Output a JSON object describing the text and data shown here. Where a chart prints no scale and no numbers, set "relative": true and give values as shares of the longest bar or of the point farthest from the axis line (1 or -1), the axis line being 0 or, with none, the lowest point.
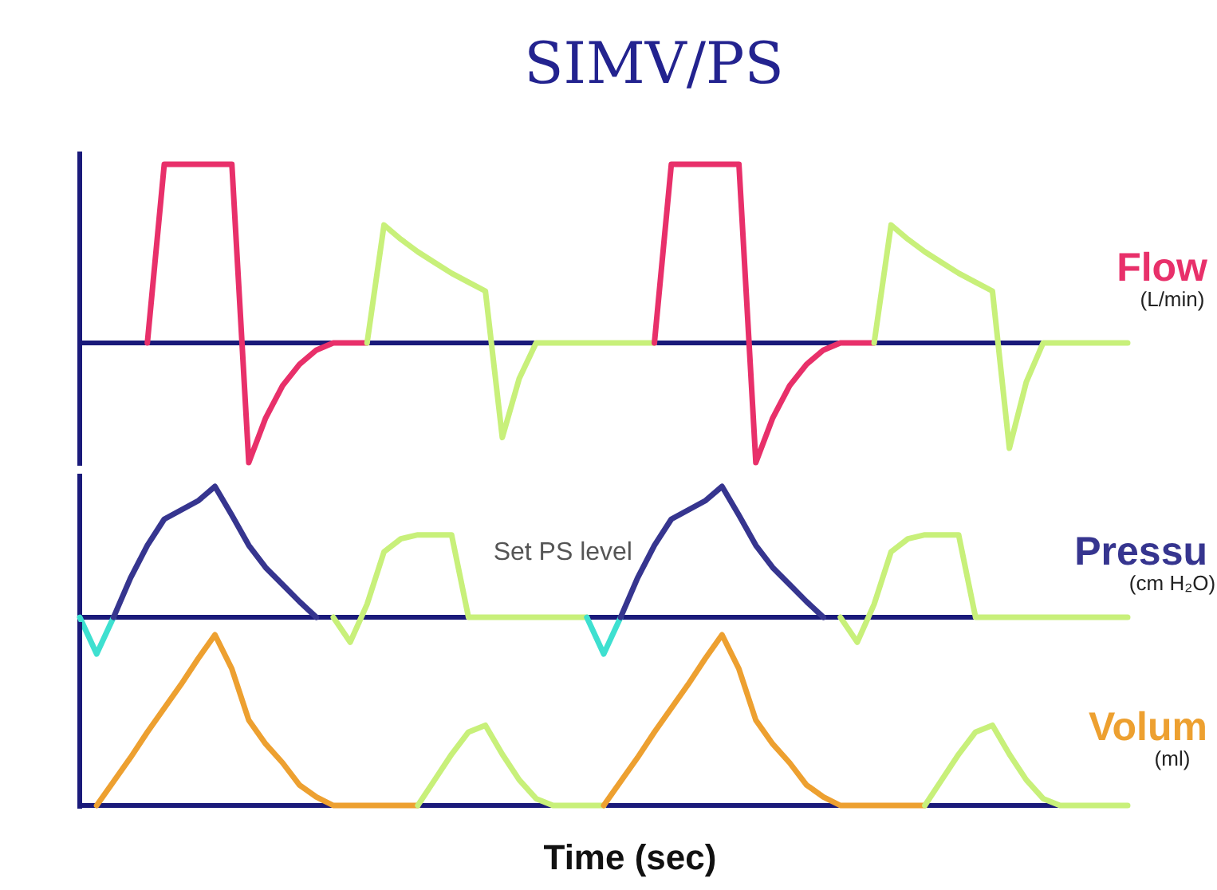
{
  "chart_data": [
    {
      "type": "line",
      "title": "SIMV/PS",
      "ylabel": "Flow",
      "annotations": [
        "(L/min)"
      ],
      "relative": true,
      "ref_lines": [
        {
          "axis": "y",
          "value": 0,
          "color": "#1a1a7a"
        }
      ],
      "categories": [
        null,
        null,
        null,
        null,
        null,
        null,
        null,
        null,
        null,
        null,
        null,
        null,
        null,
        null,
        null,
        null,
        null,
        null,
        null,
        null,
        null,
        null,
        null,
        null,
        null,
        null,
        null,
        null,
        null,
        null,
        null,
        null,
        null,
        null,
        null,
        null,
        null,
        null,
        null,
        null,
        null,
        null,
        null,
        null,
        null,
        null,
        null,
        null,
        null,
        null,
        null,
        null,
        null,
        null,
        null,
        null,
        null,
        null,
        null,
        null,
        null,
        null,
        null
      ],
      "series": [
        {
          "color": "#e8306a",
          "values": [
            null,
            null,
            null,
            null,
            0,
            1,
            1,
            1,
            1,
            1,
            -0.67,
            -0.42,
            -0.24,
            -0.12,
            -0.04,
            0,
            0,
            0,
            null,
            null,
            null,
            null,
            null,
            null,
            null,
            null,
            null,
            null,
            null,
            null,
            null,
            null,
            null,
            null,
            null,
            null,
            null,
            null,
            null,
            null,
            null,
            null,
            null,
            null,
            null,
            null,
            null,
            null,
            null,
            null,
            null,
            null,
            null,
            null,
            null,
            null,
            null,
            null,
            null,
            null,
            null,
            null,
            null
          ]
        },
        {
          "color": "#c8f07a",
          "values": [
            null,
            null,
            null,
            null,
            null,
            null,
            null,
            null,
            null,
            null,
            null,
            null,
            null,
            null,
            null,
            null,
            null,
            0,
            0.66,
            0.58,
            0.51,
            0.45,
            0.39,
            0.34,
            0.29,
            -0.53,
            -0.2,
            0,
            0,
            0,
            0,
            0,
            0,
            0,
            0,
            null,
            null,
            null,
            null,
            null,
            null,
            null,
            null,
            null,
            null,
            null,
            null,
            null,
            null,
            null,
            null,
            null,
            null,
            null,
            null,
            null,
            null,
            null,
            null,
            null,
            null,
            null,
            null
          ]
        },
        {
          "color": "#e8306a",
          "values": [
            null,
            null,
            null,
            null,
            null,
            null,
            null,
            null,
            null,
            null,
            null,
            null,
            null,
            null,
            null,
            null,
            null,
            null,
            null,
            null,
            null,
            null,
            null,
            null,
            null,
            null,
            null,
            null,
            null,
            null,
            null,
            null,
            null,
            null,
            0,
            1,
            1,
            1,
            1,
            1,
            -0.67,
            -0.42,
            -0.24,
            -0.12,
            -0.04,
            0,
            0,
            0,
            null,
            null,
            null,
            null,
            null,
            null,
            null,
            null,
            null,
            null,
            null,
            null,
            null,
            null,
            null
          ]
        },
        {
          "color": "#c8f07a",
          "values": [
            null,
            null,
            null,
            null,
            null,
            null,
            null,
            null,
            null,
            null,
            null,
            null,
            null,
            null,
            null,
            null,
            null,
            null,
            null,
            null,
            null,
            null,
            null,
            null,
            null,
            null,
            null,
            null,
            null,
            null,
            null,
            null,
            null,
            null,
            null,
            null,
            null,
            null,
            null,
            null,
            null,
            null,
            null,
            null,
            null,
            null,
            null,
            0,
            0.66,
            0.58,
            0.51,
            0.45,
            0.39,
            0.34,
            0.29,
            -0.59,
            -0.22,
            0,
            0,
            0,
            0,
            0,
            0
          ]
        }
      ]
    },
    {
      "type": "line",
      "ylabel": "Pressu",
      "annotations": [
        "(cm H₂O)",
        "Set PS level"
      ],
      "relative": true,
      "ref_lines": [
        {
          "axis": "y",
          "value": 0,
          "color": "#1a1a7a"
        }
      ],
      "categories": [
        null,
        null,
        null,
        null,
        null,
        null,
        null,
        null,
        null,
        null,
        null,
        null,
        null,
        null,
        null,
        null,
        null,
        null,
        null,
        null,
        null,
        null,
        null,
        null,
        null,
        null,
        null,
        null,
        null,
        null,
        null,
        null,
        null,
        null,
        null,
        null,
        null,
        null,
        null,
        null,
        null,
        null,
        null,
        null,
        null,
        null,
        null,
        null,
        null,
        null,
        null,
        null,
        null,
        null,
        null,
        null,
        null,
        null,
        null,
        null,
        null,
        null,
        null
      ],
      "series": [
        {
          "color": "#3ee0d0",
          "values": [
            0,
            -0.28,
            0,
            null,
            null,
            null,
            null,
            null,
            null,
            null,
            null,
            null,
            null,
            null,
            null,
            null,
            null,
            null,
            null,
            null,
            null,
            null,
            null,
            null,
            null,
            null,
            null,
            null,
            null,
            null,
            null,
            null,
            null,
            null,
            null,
            null,
            null,
            null,
            null,
            null,
            null,
            null,
            null,
            null,
            null,
            null,
            null,
            null,
            null,
            null,
            null,
            null,
            null,
            null,
            null,
            null,
            null,
            null,
            null,
            null,
            null,
            null,
            null
          ]
        },
        {
          "color": "#36358f",
          "values": [
            null,
            null,
            0,
            0.3,
            0.55,
            0.75,
            0.82,
            0.89,
            1,
            0.78,
            0.55,
            0.38,
            0.25,
            0.12,
            0,
            null,
            null,
            null,
            null,
            null,
            null,
            null,
            null,
            null,
            null,
            null,
            null,
            null,
            null,
            null,
            null,
            null,
            null,
            null,
            null,
            null,
            null,
            null,
            null,
            null,
            null,
            null,
            null,
            null,
            null,
            null,
            null,
            null,
            null,
            null,
            null,
            null,
            null,
            null,
            null,
            null,
            null,
            null,
            null,
            null,
            null,
            null,
            null
          ]
        },
        {
          "color": "#c8f07a",
          "values": [
            null,
            null,
            null,
            null,
            null,
            null,
            null,
            null,
            null,
            null,
            null,
            null,
            null,
            null,
            null,
            0,
            -0.19,
            0.1,
            0.5,
            0.6,
            0.63,
            0.63,
            0.63,
            0,
            0,
            0,
            0,
            0,
            0,
            0,
            0,
            null,
            null,
            null,
            null,
            null,
            null,
            null,
            null,
            null,
            null,
            null,
            null,
            null,
            null,
            null,
            null,
            null,
            null,
            null,
            null,
            null,
            null,
            null,
            null,
            null,
            null,
            null,
            null,
            null,
            null,
            null,
            null
          ]
        },
        {
          "color": "#3ee0d0",
          "values": [
            null,
            null,
            null,
            null,
            null,
            null,
            null,
            null,
            null,
            null,
            null,
            null,
            null,
            null,
            null,
            null,
            null,
            null,
            null,
            null,
            null,
            null,
            null,
            null,
            null,
            null,
            null,
            null,
            null,
            null,
            0,
            -0.28,
            0,
            null,
            null,
            null,
            null,
            null,
            null,
            null,
            null,
            null,
            null,
            null,
            null,
            null,
            null,
            null,
            null,
            null,
            null,
            null,
            null,
            null,
            null,
            null,
            null,
            null,
            null,
            null,
            null,
            null,
            null
          ]
        },
        {
          "color": "#36358f",
          "values": [
            null,
            null,
            null,
            null,
            null,
            null,
            null,
            null,
            null,
            null,
            null,
            null,
            null,
            null,
            null,
            null,
            null,
            null,
            null,
            null,
            null,
            null,
            null,
            null,
            null,
            null,
            null,
            null,
            null,
            null,
            null,
            null,
            0,
            0.3,
            0.55,
            0.75,
            0.82,
            0.89,
            1,
            0.78,
            0.55,
            0.38,
            0.25,
            0.12,
            0,
            null,
            null,
            null,
            null,
            null,
            null,
            null,
            null,
            null,
            null,
            null,
            null,
            null,
            null,
            null,
            null,
            null,
            null
          ]
        },
        {
          "color": "#c8f07a",
          "values": [
            null,
            null,
            null,
            null,
            null,
            null,
            null,
            null,
            null,
            null,
            null,
            null,
            null,
            null,
            null,
            null,
            null,
            null,
            null,
            null,
            null,
            null,
            null,
            null,
            null,
            null,
            null,
            null,
            null,
            null,
            null,
            null,
            null,
            null,
            null,
            null,
            null,
            null,
            null,
            null,
            null,
            null,
            null,
            null,
            null,
            0,
            -0.19,
            0.1,
            0.5,
            0.6,
            0.63,
            0.63,
            0.63,
            0,
            0,
            0,
            0,
            0,
            0,
            0,
            0,
            0,
            0
          ]
        }
      ]
    },
    {
      "type": "line",
      "ylabel": "Volum",
      "xlabel": "Time (sec)",
      "annotations": [
        "(ml)"
      ],
      "relative": true,
      "categories": [
        null,
        null,
        null,
        null,
        null,
        null,
        null,
        null,
        null,
        null,
        null,
        null,
        null,
        null,
        null,
        null,
        null,
        null,
        null,
        null,
        null,
        null,
        null,
        null,
        null,
        null,
        null,
        null,
        null,
        null,
        null,
        null,
        null,
        null,
        null,
        null,
        null,
        null,
        null,
        null,
        null,
        null,
        null,
        null,
        null,
        null,
        null,
        null,
        null,
        null,
        null,
        null,
        null,
        null,
        null,
        null,
        null,
        null,
        null,
        null,
        null,
        null,
        null
      ],
      "series": [
        {
          "color": "#eda030",
          "values": [
            null,
            0,
            0.14,
            0.28,
            0.43,
            0.57,
            0.71,
            0.86,
            1,
            0.8,
            0.5,
            0.36,
            0.25,
            0.12,
            0.05,
            0,
            0,
            0,
            0,
            0,
            0,
            null,
            null,
            null,
            null,
            null,
            null,
            null,
            null,
            null,
            null,
            null,
            null,
            null,
            null,
            null,
            null,
            null,
            null,
            null,
            null,
            null,
            null,
            null,
            null,
            null,
            null,
            null,
            null,
            null,
            null,
            null,
            null,
            null,
            null,
            null,
            null,
            null,
            null,
            null,
            null,
            null,
            null
          ]
        },
        {
          "color": "#c8f07a",
          "values": [
            null,
            null,
            null,
            null,
            null,
            null,
            null,
            null,
            null,
            null,
            null,
            null,
            null,
            null,
            null,
            null,
            null,
            null,
            null,
            null,
            0,
            0.15,
            0.3,
            0.43,
            0.47,
            0.3,
            0.15,
            0.04,
            0,
            0,
            0,
            0,
            null,
            null,
            null,
            null,
            null,
            null,
            null,
            null,
            null,
            null,
            null,
            null,
            null,
            null,
            null,
            null,
            null,
            null,
            null,
            null,
            null,
            null,
            null,
            null,
            null,
            null,
            null,
            null,
            null,
            null,
            null
          ]
        },
        {
          "color": "#eda030",
          "values": [
            null,
            null,
            null,
            null,
            null,
            null,
            null,
            null,
            null,
            null,
            null,
            null,
            null,
            null,
            null,
            null,
            null,
            null,
            null,
            null,
            null,
            null,
            null,
            null,
            null,
            null,
            null,
            null,
            null,
            null,
            null,
            0,
            0.14,
            0.28,
            0.43,
            0.57,
            0.71,
            0.86,
            1,
            0.8,
            0.5,
            0.36,
            0.25,
            0.12,
            0.05,
            0,
            0,
            0,
            0,
            0,
            0,
            null,
            null,
            null,
            null,
            null,
            null,
            null,
            null,
            null,
            null,
            null,
            null
          ]
        },
        {
          "color": "#c8f07a",
          "values": [
            null,
            null,
            null,
            null,
            null,
            null,
            null,
            null,
            null,
            null,
            null,
            null,
            null,
            null,
            null,
            null,
            null,
            null,
            null,
            null,
            null,
            null,
            null,
            null,
            null,
            null,
            null,
            null,
            null,
            null,
            null,
            null,
            null,
            null,
            null,
            null,
            null,
            null,
            null,
            null,
            null,
            null,
            null,
            null,
            null,
            null,
            null,
            null,
            null,
            null,
            0,
            0.15,
            0.3,
            0.43,
            0.47,
            0.3,
            0.15,
            0.04,
            0,
            0,
            0,
            0,
            0
          ]
        }
      ]
    }
  ]
}
